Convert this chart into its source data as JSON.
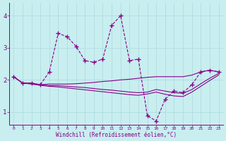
{
  "xlabel": "Windchill (Refroidissement éolien,°C)",
  "background_color": "#c8eef0",
  "grid_color": "#b0dde0",
  "line_color": "#880088",
  "xlim": [
    -0.5,
    23.5
  ],
  "ylim": [
    0.6,
    4.4
  ],
  "xticks": [
    0,
    1,
    2,
    3,
    4,
    5,
    6,
    7,
    8,
    9,
    10,
    11,
    12,
    13,
    14,
    15,
    16,
    17,
    18,
    19,
    20,
    21,
    22,
    23
  ],
  "yticks": [
    1,
    2,
    3,
    4
  ],
  "curves": [
    {
      "y": [
        2.1,
        1.9,
        1.9,
        1.85,
        2.25,
        3.45,
        3.35,
        3.05,
        2.6,
        2.55,
        2.65,
        3.7,
        4.0,
        2.6,
        2.65,
        0.88,
        0.72,
        1.4,
        1.65,
        1.6,
        1.85,
        2.25,
        2.3,
        2.25
      ],
      "marker": true
    },
    {
      "y": [
        2.1,
        1.9,
        1.9,
        1.85,
        1.87,
        1.87,
        1.87,
        1.88,
        1.9,
        1.92,
        1.95,
        1.97,
        2.0,
        2.02,
        2.05,
        2.08,
        2.1,
        2.1,
        2.1,
        2.1,
        2.15,
        2.25,
        2.3,
        2.25
      ],
      "marker": false
    },
    {
      "y": [
        2.1,
        1.9,
        1.88,
        1.85,
        1.82,
        1.82,
        1.8,
        1.78,
        1.76,
        1.73,
        1.7,
        1.68,
        1.65,
        1.62,
        1.6,
        1.62,
        1.7,
        1.65,
        1.6,
        1.58,
        1.7,
        1.88,
        2.05,
        2.2
      ],
      "marker": false
    },
    {
      "y": [
        2.1,
        1.9,
        1.87,
        1.83,
        1.8,
        1.78,
        1.75,
        1.72,
        1.69,
        1.66,
        1.63,
        1.6,
        1.57,
        1.54,
        1.52,
        1.56,
        1.62,
        1.55,
        1.5,
        1.48,
        1.62,
        1.8,
        1.98,
        2.15
      ],
      "marker": false
    }
  ]
}
